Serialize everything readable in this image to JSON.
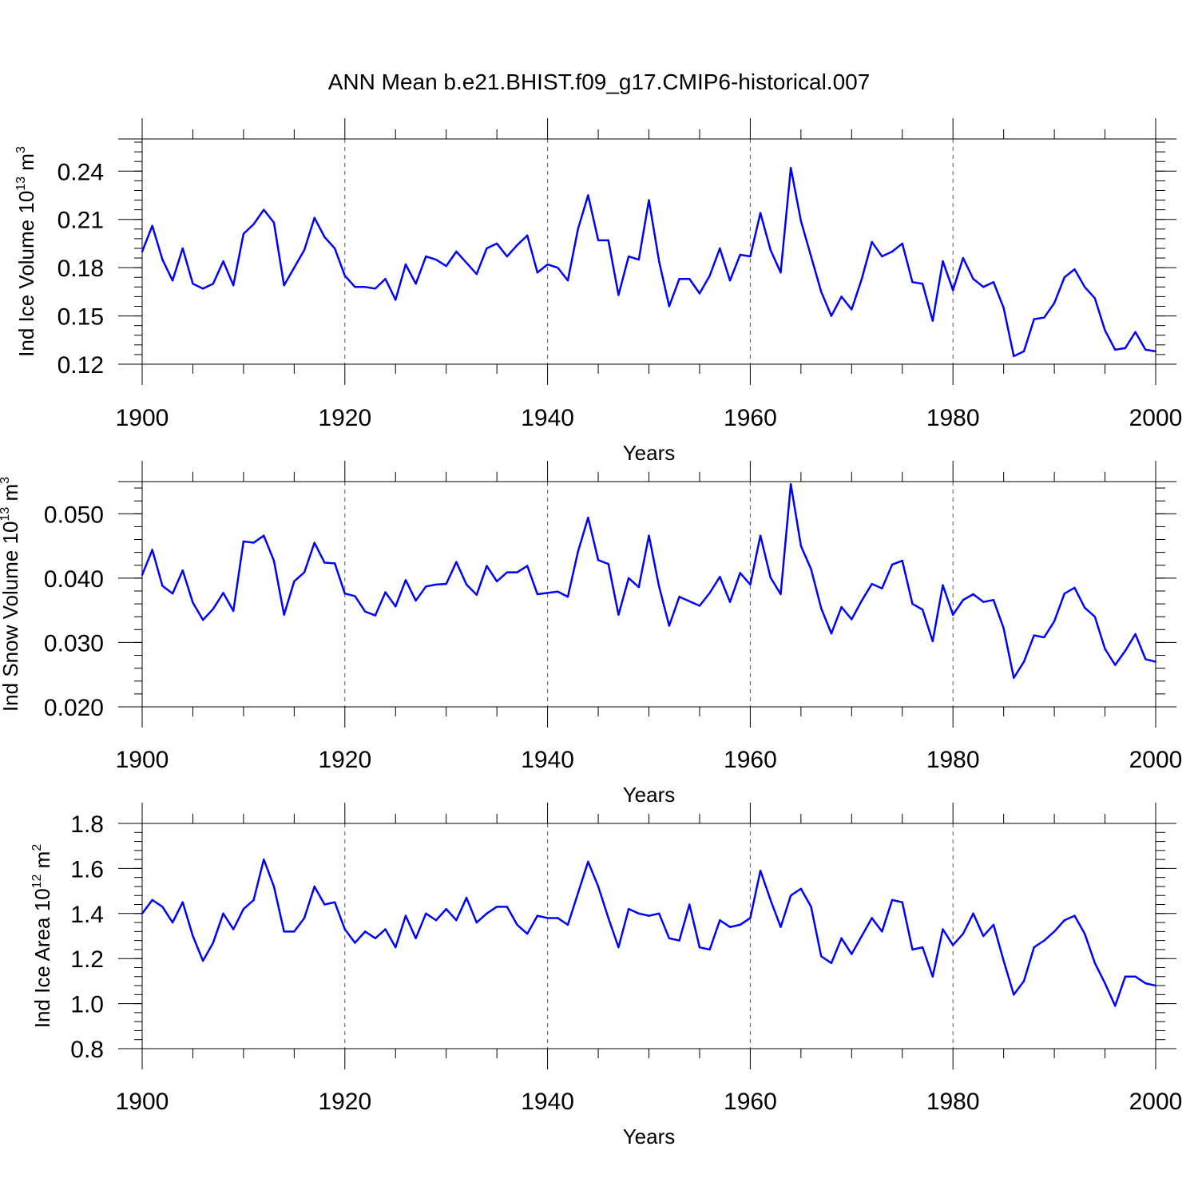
{
  "title": "ANN Mean b.e21.BHIST.f09_g17.CMIP6-historical.007",
  "colors": {
    "series": "#0000ff",
    "axis": "#000000",
    "grid": "#555555"
  },
  "chart_data": [
    {
      "type": "line",
      "ylabel": "Ind Ice Volume 10",
      "ylabel_exp": "13",
      "ylabel_unit": " m",
      "ylabel_unit_exp": "3",
      "xlabel": "Years",
      "xlim": [
        1900,
        2000
      ],
      "ylim": [
        0.12,
        0.26
      ],
      "xticks": [
        "1900",
        "1920",
        "1940",
        "1960",
        "1980",
        "2000"
      ],
      "yticks": [
        "0.12",
        "0.15",
        "0.18",
        "0.21",
        "0.24"
      ],
      "grid": "vertical dashed at major x ticks",
      "x_start": 1900,
      "values": [
        0.19,
        0.206,
        0.185,
        0.172,
        0.192,
        0.17,
        0.167,
        0.17,
        0.184,
        0.169,
        0.201,
        0.207,
        0.216,
        0.208,
        0.169,
        0.18,
        0.191,
        0.211,
        0.199,
        0.192,
        0.175,
        0.168,
        0.168,
        0.167,
        0.173,
        0.16,
        0.182,
        0.17,
        0.187,
        0.185,
        0.181,
        0.19,
        0.183,
        0.176,
        0.192,
        0.195,
        0.187,
        0.194,
        0.2,
        0.177,
        0.182,
        0.18,
        0.172,
        0.204,
        0.225,
        0.197,
        0.197,
        0.163,
        0.187,
        0.185,
        0.222,
        0.184,
        0.156,
        0.173,
        0.173,
        0.164,
        0.175,
        0.192,
        0.172,
        0.188,
        0.187,
        0.214,
        0.191,
        0.177,
        0.242,
        0.209,
        0.187,
        0.165,
        0.15,
        0.162,
        0.154,
        0.173,
        0.196,
        0.187,
        0.19,
        0.195,
        0.171,
        0.17,
        0.147,
        0.184,
        0.166,
        0.186,
        0.173,
        0.168,
        0.171,
        0.155,
        0.125,
        0.128,
        0.148,
        0.149,
        0.158,
        0.174,
        0.179,
        0.168,
        0.161,
        0.141,
        0.129,
        0.13,
        0.14,
        0.129,
        0.128
      ]
    },
    {
      "type": "line",
      "ylabel": "Ind Snow Volume 10",
      "ylabel_exp": "13",
      "ylabel_unit": " m",
      "ylabel_unit_exp": "3",
      "xlabel": "Years",
      "xlim": [
        1900,
        2000
      ],
      "ylim": [
        0.02,
        0.055
      ],
      "xticks": [
        "1900",
        "1920",
        "1940",
        "1960",
        "1980",
        "2000"
      ],
      "yticks": [
        "0.020",
        "0.030",
        "0.040",
        "0.050"
      ],
      "grid": "vertical dashed at major x ticks",
      "x_start": 1900,
      "values": [
        0.0405,
        0.0444,
        0.0388,
        0.0376,
        0.0412,
        0.0362,
        0.0335,
        0.0352,
        0.0377,
        0.0349,
        0.0457,
        0.0455,
        0.0466,
        0.0427,
        0.0343,
        0.0395,
        0.0409,
        0.0455,
        0.0424,
        0.0423,
        0.0376,
        0.0372,
        0.0348,
        0.0342,
        0.0378,
        0.0356,
        0.0397,
        0.0365,
        0.0387,
        0.039,
        0.0391,
        0.0425,
        0.039,
        0.0374,
        0.0419,
        0.0395,
        0.0409,
        0.0409,
        0.0419,
        0.0375,
        0.0377,
        0.0379,
        0.0371,
        0.0441,
        0.0494,
        0.0428,
        0.0422,
        0.0343,
        0.04,
        0.0386,
        0.0466,
        0.0387,
        0.0326,
        0.0371,
        0.0364,
        0.0357,
        0.0377,
        0.0402,
        0.0363,
        0.0408,
        0.039,
        0.0466,
        0.0401,
        0.0375,
        0.0546,
        0.045,
        0.0414,
        0.0353,
        0.0314,
        0.0355,
        0.0336,
        0.0365,
        0.0391,
        0.0384,
        0.0421,
        0.0427,
        0.036,
        0.0351,
        0.0302,
        0.0389,
        0.0343,
        0.0366,
        0.0375,
        0.0363,
        0.0366,
        0.0322,
        0.0245,
        0.027,
        0.0311,
        0.0308,
        0.0333,
        0.0376,
        0.0385,
        0.0354,
        0.034,
        0.029,
        0.0265,
        0.0287,
        0.0313,
        0.0274,
        0.027
      ]
    },
    {
      "type": "line",
      "ylabel": "Ind Ice Area 10",
      "ylabel_exp": "12",
      "ylabel_unit": " m",
      "ylabel_unit_exp": "2",
      "xlabel": "Years",
      "xlim": [
        1900,
        2000
      ],
      "ylim": [
        0.8,
        1.8
      ],
      "xticks": [
        "1900",
        "1920",
        "1940",
        "1960",
        "1980",
        "2000"
      ],
      "yticks": [
        "0.8",
        "1.0",
        "1.2",
        "1.4",
        "1.6",
        "1.8"
      ],
      "grid": "vertical dashed at major x ticks",
      "x_start": 1900,
      "values": [
        1.4,
        1.46,
        1.43,
        1.36,
        1.45,
        1.3,
        1.19,
        1.27,
        1.4,
        1.33,
        1.42,
        1.46,
        1.64,
        1.52,
        1.32,
        1.32,
        1.38,
        1.52,
        1.44,
        1.45,
        1.33,
        1.27,
        1.32,
        1.29,
        1.33,
        1.25,
        1.39,
        1.29,
        1.4,
        1.37,
        1.42,
        1.37,
        1.47,
        1.36,
        1.4,
        1.43,
        1.43,
        1.35,
        1.31,
        1.39,
        1.38,
        1.38,
        1.35,
        1.49,
        1.63,
        1.52,
        1.38,
        1.25,
        1.42,
        1.4,
        1.39,
        1.4,
        1.29,
        1.28,
        1.44,
        1.25,
        1.24,
        1.37,
        1.34,
        1.35,
        1.38,
        1.59,
        1.46,
        1.34,
        1.48,
        1.51,
        1.43,
        1.21,
        1.18,
        1.29,
        1.22,
        1.3,
        1.38,
        1.32,
        1.46,
        1.45,
        1.24,
        1.25,
        1.12,
        1.33,
        1.26,
        1.31,
        1.4,
        1.3,
        1.35,
        1.19,
        1.04,
        1.1,
        1.25,
        1.28,
        1.32,
        1.37,
        1.39,
        1.31,
        1.18,
        1.09,
        0.99,
        1.12,
        1.12,
        1.09,
        1.08
      ]
    }
  ]
}
